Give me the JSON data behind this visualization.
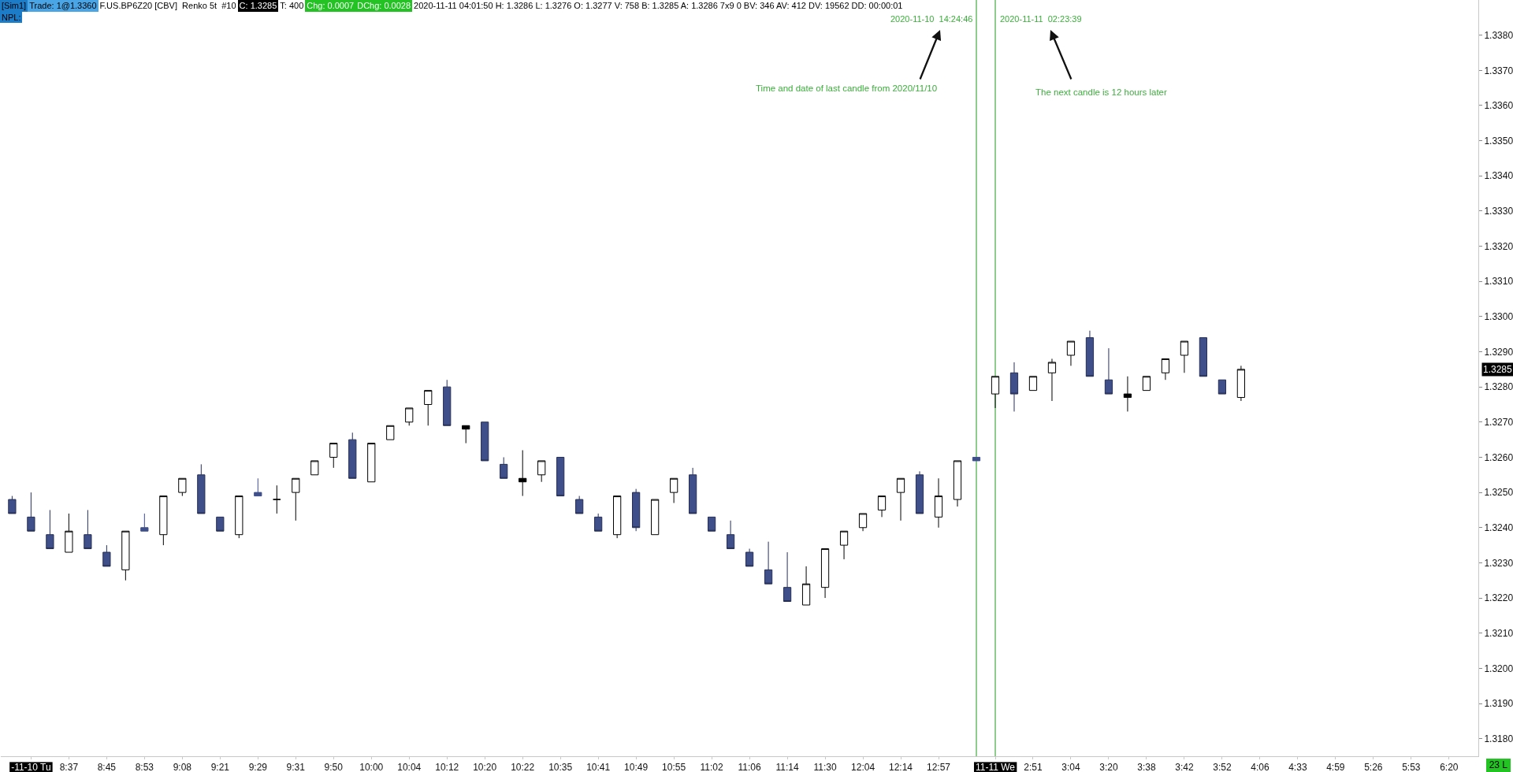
{
  "chart_data": {
    "type": "candlestick",
    "categories": [
      null,
      "-11-10 Tu",
      null,
      "8:37",
      null,
      "8:45",
      null,
      "8:53",
      null,
      "9:08",
      null,
      "9:21",
      null,
      "9:29",
      null,
      "9:31",
      null,
      "9:50",
      null,
      "10:00",
      null,
      "10:04",
      null,
      "10:12",
      null,
      "10:20",
      null,
      "10:22",
      null,
      "10:35",
      null,
      "10:41",
      null,
      "10:49",
      null,
      "10:55",
      null,
      "11:02",
      null,
      "11:06",
      null,
      "11:14",
      null,
      "11:30",
      null,
      "12:04",
      null,
      "12:14",
      null,
      "12:57",
      null,
      null,
      "11-11 We",
      null,
      "2:51",
      null,
      "3:04",
      null,
      "3:20",
      null,
      "3:38",
      null,
      "3:42",
      null,
      "3:52",
      null,
      "4:06",
      null,
      "4:33",
      null,
      "4:59",
      null,
      "5:26",
      null,
      "5:53",
      null,
      "6:20",
      null
    ],
    "ohlc": [
      [
        1.3248,
        1.3249,
        1.3244,
        1.3244
      ],
      [
        1.3243,
        1.325,
        1.3239,
        1.3239
      ],
      [
        1.3238,
        1.3245,
        1.3234,
        1.3234
      ],
      [
        1.3233,
        1.3244,
        1.3233,
        1.3239
      ],
      [
        1.3238,
        1.3245,
        1.3234,
        1.3234
      ],
      [
        1.3233,
        1.3235,
        1.3229,
        1.3229
      ],
      [
        1.3228,
        1.3239,
        1.3225,
        1.3239
      ],
      [
        1.324,
        1.3244,
        1.3239,
        1.3239
      ],
      [
        1.3238,
        1.3249,
        1.3235,
        1.3249
      ],
      [
        1.325,
        1.3254,
        1.3249,
        1.3254
      ],
      [
        1.3255,
        1.3258,
        1.3244,
        1.3244
      ],
      [
        1.3243,
        1.3243,
        1.3239,
        1.3239
      ],
      [
        1.3238,
        1.3249,
        1.3237,
        1.3249
      ],
      [
        1.325,
        1.3254,
        1.3249,
        1.3249
      ],
      [
        1.3248,
        1.3252,
        1.3244,
        1.3248
      ],
      [
        1.325,
        1.3254,
        1.3242,
        1.3254
      ],
      [
        1.3255,
        1.3259,
        1.3255,
        1.3259
      ],
      [
        1.326,
        1.3264,
        1.3257,
        1.3264
      ],
      [
        1.3265,
        1.3267,
        1.3254,
        1.3254
      ],
      [
        1.3253,
        1.3264,
        1.3253,
        1.3264
      ],
      [
        1.3265,
        1.3269,
        1.3265,
        1.3269
      ],
      [
        1.327,
        1.3274,
        1.3269,
        1.3274
      ],
      [
        1.3275,
        1.3279,
        1.3269,
        1.3279
      ],
      [
        1.328,
        1.3282,
        1.3269,
        1.3269
      ],
      [
        1.3268,
        1.3269,
        1.3264,
        1.3269
      ],
      [
        1.327,
        1.327,
        1.3259,
        1.3259
      ],
      [
        1.3258,
        1.326,
        1.3254,
        1.3254
      ],
      [
        1.3253,
        1.3262,
        1.3249,
        1.3254
      ],
      [
        1.3255,
        1.3259,
        1.3253,
        1.3259
      ],
      [
        1.326,
        1.326,
        1.3249,
        1.3249
      ],
      [
        1.3248,
        1.3249,
        1.3244,
        1.3244
      ],
      [
        1.3243,
        1.3244,
        1.3239,
        1.3239
      ],
      [
        1.3238,
        1.3249,
        1.3237,
        1.3249
      ],
      [
        1.325,
        1.3251,
        1.3239,
        1.324
      ],
      [
        1.3238,
        1.3248,
        1.3238,
        1.3248
      ],
      [
        1.325,
        1.3254,
        1.3247,
        1.3254
      ],
      [
        1.3255,
        1.3257,
        1.3244,
        1.3244
      ],
      [
        1.3243,
        1.3243,
        1.3239,
        1.3239
      ],
      [
        1.3238,
        1.3242,
        1.3234,
        1.3234
      ],
      [
        1.3233,
        1.3234,
        1.3229,
        1.3229
      ],
      [
        1.3228,
        1.3236,
        1.3224,
        1.3224
      ],
      [
        1.3223,
        1.3233,
        1.3219,
        1.3219
      ],
      [
        1.3218,
        1.3229,
        1.3218,
        1.3224
      ],
      [
        1.3223,
        1.3234,
        1.322,
        1.3234
      ],
      [
        1.3235,
        1.3239,
        1.3231,
        1.3239
      ],
      [
        1.324,
        1.3244,
        1.3239,
        1.3244
      ],
      [
        1.3245,
        1.3249,
        1.3243,
        1.3249
      ],
      [
        1.325,
        1.3254,
        1.3242,
        1.3254
      ],
      [
        1.3255,
        1.3256,
        1.3244,
        1.3244
      ],
      [
        1.3243,
        1.3254,
        1.324,
        1.3249
      ],
      [
        1.3248,
        1.3259,
        1.3246,
        1.3259
      ],
      [
        1.326,
        1.326,
        1.3259,
        1.3259
      ],
      [
        1.3278,
        1.3283,
        1.3274,
        1.3283
      ],
      [
        1.3284,
        1.3287,
        1.3273,
        1.3278
      ],
      [
        1.3279,
        1.3283,
        1.3279,
        1.3283
      ],
      [
        1.3284,
        1.3288,
        1.3276,
        1.3287
      ],
      [
        1.3289,
        1.3293,
        1.3286,
        1.3293
      ],
      [
        1.3294,
        1.3296,
        1.3283,
        1.3283
      ],
      [
        1.3282,
        1.3291,
        1.3278,
        1.3278
      ],
      [
        1.3277,
        1.3283,
        1.3273,
        1.3278
      ],
      [
        1.3279,
        1.3283,
        1.3279,
        1.3283
      ],
      [
        1.3284,
        1.3288,
        1.3282,
        1.3288
      ],
      [
        1.3289,
        1.3293,
        1.3284,
        1.3293
      ],
      [
        1.3294,
        1.3294,
        1.3283,
        1.3283
      ],
      [
        1.3282,
        1.3282,
        1.3278,
        1.3278
      ],
      [
        1.3277,
        1.3286,
        1.3276,
        1.3285
      ],
      null,
      null,
      null,
      null,
      null,
      null,
      null,
      null,
      null,
      null,
      null,
      null
    ],
    "colors": [
      "#3f4f8a",
      "#3f4f8a",
      "#3f4f8a",
      "#ffffff",
      "#3f4f8a",
      "#3f4f8a",
      "#ffffff",
      "#3f4f8a",
      "#ffffff",
      "#ffffff",
      "#3f4f8a",
      "#3f4f8a",
      "#ffffff",
      "#3f4f8a",
      "#000000",
      "#ffffff",
      "#ffffff",
      "#ffffff",
      "#3f4f8a",
      "#ffffff",
      "#ffffff",
      "#ffffff",
      "#ffffff",
      "#3f4f8a",
      "#000000",
      "#3f4f8a",
      "#3f4f8a",
      "#000000",
      "#ffffff",
      "#3f4f8a",
      "#3f4f8a",
      "#3f4f8a",
      "#ffffff",
      "#3f4f8a",
      "#ffffff",
      "#ffffff",
      "#3f4f8a",
      "#3f4f8a",
      "#3f4f8a",
      "#3f4f8a",
      "#3f4f8a",
      "#3f4f8a",
      "#ffffff",
      "#ffffff",
      "#ffffff",
      "#ffffff",
      "#ffffff",
      "#ffffff",
      "#3f4f8a",
      "#ffffff",
      "#ffffff",
      "#3f4f8a",
      "#ffffff",
      "#3f4f8a",
      "#ffffff",
      "#ffffff",
      "#ffffff",
      "#3f4f8a",
      "#3f4f8a",
      "#000000",
      "#ffffff",
      "#ffffff",
      "#ffffff",
      "#3f4f8a",
      "#3f4f8a",
      "#ffffff",
      null,
      null,
      null,
      null,
      null,
      null,
      null,
      null,
      null,
      null,
      null,
      null
    ],
    "ylim": [
      1.3175,
      1.339
    ],
    "yticks": [
      {
        "value": 1.318,
        "label": "1.3180"
      },
      {
        "value": 1.319,
        "label": "1.3190"
      },
      {
        "value": 1.32,
        "label": "1.3200"
      },
      {
        "value": 1.321,
        "label": "1.3210"
      },
      {
        "value": 1.322,
        "label": "1.3220"
      },
      {
        "value": 1.323,
        "label": "1.3230"
      },
      {
        "value": 1.324,
        "label": "1.3240"
      },
      {
        "value": 1.325,
        "label": "1.3250"
      },
      {
        "value": 1.326,
        "label": "1.3260"
      },
      {
        "value": 1.327,
        "label": "1.3270"
      },
      {
        "value": 1.328,
        "label": "1.3280"
      },
      {
        "value": 1.329,
        "label": "1.3290"
      },
      {
        "value": 1.33,
        "label": "1.3300"
      },
      {
        "value": 1.331,
        "label": "1.3310"
      },
      {
        "value": 1.332,
        "label": "1.3320"
      },
      {
        "value": 1.333,
        "label": "1.3330"
      },
      {
        "value": 1.334,
        "label": "1.3340"
      },
      {
        "value": 1.335,
        "label": "1.3350"
      },
      {
        "value": 1.336,
        "label": "1.3360"
      },
      {
        "value": 1.337,
        "label": "1.3370"
      },
      {
        "value": 1.338,
        "label": "1.3380"
      }
    ],
    "annotations": [
      "[Sim1]",
      "Trade: 1@1.3360",
      "F.US.BP6Z20 [CBV]  Renko 5t  #10",
      "C: 1.3285",
      "T: 400",
      "Chg: 0.0007",
      "DChg: 0.0028",
      "2020-11-11 04:01:50 H: 1.3286 L: 1.3276 O: 1.3277 V: 758 B: 1.3285 A: 1.3286 7x9 0 BV: 346 AV: 412 DV: 19562 DD: 00:00:01",
      "NPL:",
      "2020-11-10  14:24:46",
      "2020-11-11  02:23:39",
      "Time and date of last candle from 2020/11/10",
      "The next candle is 12 hours later",
      "1.3285",
      "23 L"
    ]
  }
}
